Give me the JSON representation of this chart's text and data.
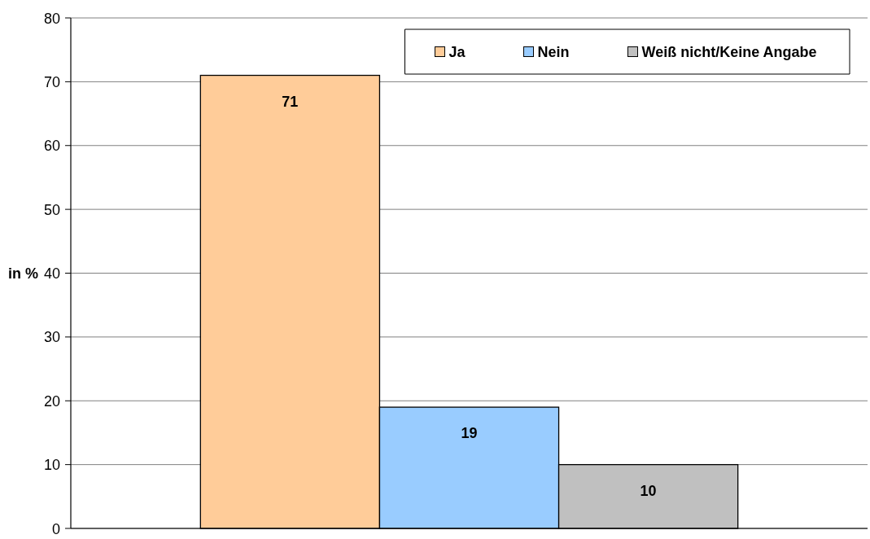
{
  "chart_data": {
    "type": "bar",
    "ylabel": "in %",
    "categories": [
      null
    ],
    "series": [
      {
        "name": "Ja",
        "color": "#ffcc99",
        "values": [
          71
        ]
      },
      {
        "name": "Nein",
        "color": "#99ccff",
        "values": [
          19
        ]
      },
      {
        "name": "Weiß nicht/Keine Angabe",
        "color": "#c0c0c0",
        "values": [
          10
        ]
      }
    ],
    "ylim": [
      0,
      80
    ],
    "yticks": [
      0,
      10,
      20,
      30,
      40,
      50,
      60,
      70,
      80
    ],
    "grid": "y",
    "legend": "top right",
    "data_labels": true
  }
}
